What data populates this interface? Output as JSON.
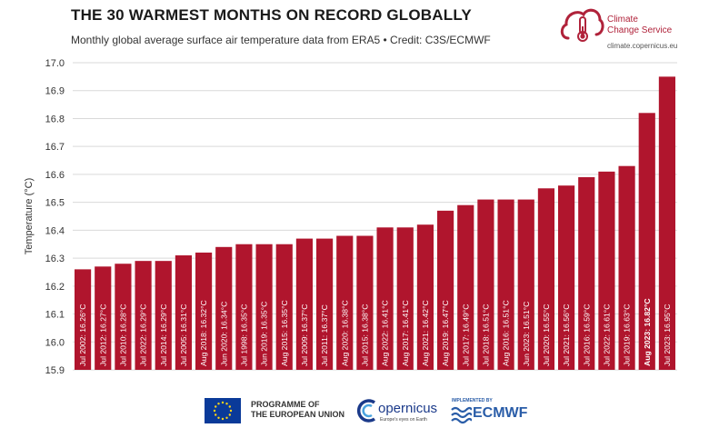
{
  "header": {
    "title": "THE 30 WARMEST MONTHS ON RECORD GLOBALLY",
    "subtitle": "Monthly global average surface air temperature data from ERA5 • Credit: C3S/ECMWF"
  },
  "logo": {
    "name": "Climate\nChange Service",
    "url": "climate.copernicus.eu",
    "icon": "cloud-thermometer-icon",
    "color": "#b0223a"
  },
  "colors": {
    "bar": "#b0152d",
    "grid": "#d9d9d9",
    "label": "#ffffff"
  },
  "chart_data": {
    "type": "bar",
    "ylabel": "Temperature (°C)",
    "ylim": [
      15.9,
      17.0
    ],
    "yticks": [
      "15.9",
      "16.0",
      "16.1",
      "16.2",
      "16.3",
      "16.4",
      "16.5",
      "16.6",
      "16.7",
      "16.8",
      "16.9",
      "17.0"
    ],
    "grid": true,
    "bar_labels": [
      "Jul 2002: 16.26°C",
      "Jul 2012: 16.27°C",
      "Jul 2010: 16.28°C",
      "Jul 2022: 16.29°C",
      "Jul 2014: 16.29°C",
      "Jul 2005: 16.31°C",
      "Aug 2018: 16.32°C",
      "Jun 2020: 16.34°C",
      "Jul 1998: 16.35°C",
      "Jun 2019: 16.35°C",
      "Aug 2015: 16.35°C",
      "Jul 2009: 16.37°C",
      "Jul 2011: 16.37°C",
      "Aug 2020: 16.38°C",
      "Jul 2015: 16.38°C",
      "Aug 2022: 16.41°C",
      "Aug 2017: 16.41°C",
      "Aug 2021: 16.42°C",
      "Aug 2019: 16.47°C",
      "Jul 2017: 16.49°C",
      "Jul 2018: 16.51°C",
      "Aug 2016: 16.51°C",
      "Jun 2023: 16.51°C",
      "Jul 2020: 16.55°C",
      "Jul 2021: 16.56°C",
      "Jul 2016: 16.59°C",
      "Jul 2022: 16.61°C",
      "Jul 2019: 16.63°C",
      "Aug 2023: 16.82°C",
      "Jul 2023: 16.95°C"
    ],
    "values": [
      16.26,
      16.27,
      16.28,
      16.29,
      16.29,
      16.31,
      16.32,
      16.34,
      16.35,
      16.35,
      16.35,
      16.37,
      16.37,
      16.38,
      16.38,
      16.41,
      16.41,
      16.42,
      16.47,
      16.49,
      16.51,
      16.51,
      16.51,
      16.55,
      16.56,
      16.59,
      16.61,
      16.63,
      16.82,
      16.95
    ],
    "highlight_label": "Aug 2023: 16.82°C"
  },
  "footer": {
    "eu_text": "PROGRAMME OF\nTHE EUROPEAN UNION",
    "copernicus": "opernicus",
    "copernicus_tagline": "Europe's eyes on Earth",
    "implemented_by": "IMPLEMENTED BY",
    "ecmwf": "ECMWF",
    "eu_flag_icon": "eu-flag-icon",
    "copernicus_icon": "copernicus-logo-icon",
    "ecmwf_icon": "ecmwf-logo-icon"
  }
}
